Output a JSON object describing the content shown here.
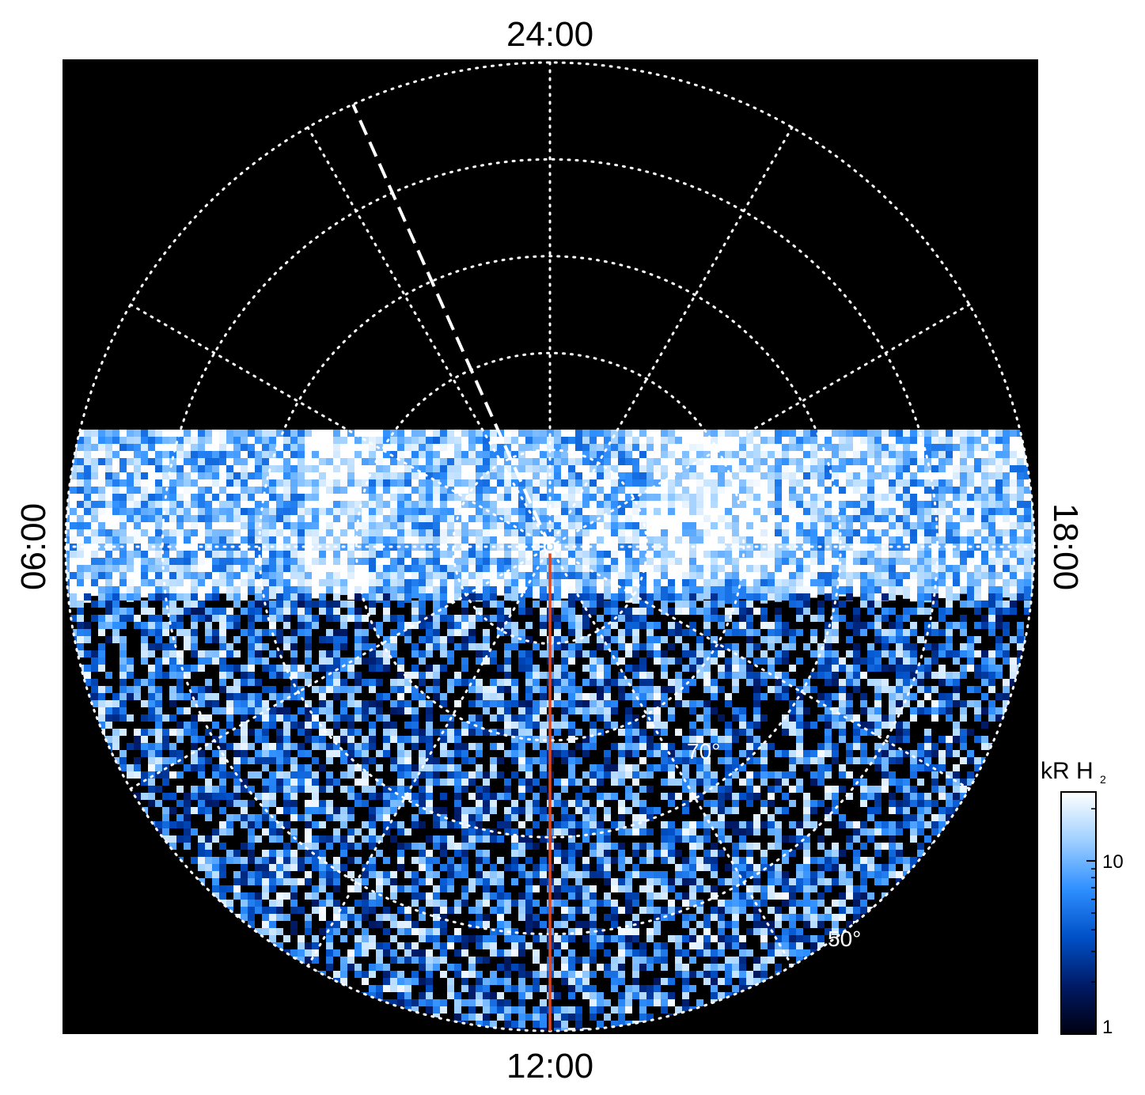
{
  "chart_data": {
    "type": "heatmap",
    "projection": "polar",
    "local_time_labels": {
      "top": "24:00",
      "bottom": "12:00",
      "left": "06:00",
      "right": "18:00"
    },
    "latitude_labels": [
      {
        "text": "70°",
        "lat": 70
      },
      {
        "text": "50°",
        "lat": 50
      }
    ],
    "colorbar": {
      "title_main": "kR H",
      "title_sub": "2",
      "scale": "log",
      "range": [
        1,
        25
      ],
      "ticks": [
        {
          "value": 1,
          "label": "1"
        },
        {
          "value": 10,
          "label": "10"
        }
      ],
      "colors": [
        "#000010",
        "#001a66",
        "#0050c8",
        "#2f90ff",
        "#9fd0ff",
        "#ffffff"
      ]
    },
    "grid": {
      "visible": true,
      "style": "dotted",
      "color": "#ffffff",
      "latitude_circles_deg": [
        80,
        70,
        60,
        50,
        40
      ],
      "meridian_step_hours": 2
    },
    "sampled_track": {
      "local_time": "12:00",
      "color": "#e0471e"
    },
    "dashed_meridian_local_time_h": 1.6,
    "emission": {
      "description_levels": "kR",
      "auroral_oval_colatitude_deg": [
        12,
        20
      ],
      "oval_mean_kR": 12,
      "dayside_noise_mean_kR": 5,
      "nightside_cutoff_row": true
    }
  }
}
